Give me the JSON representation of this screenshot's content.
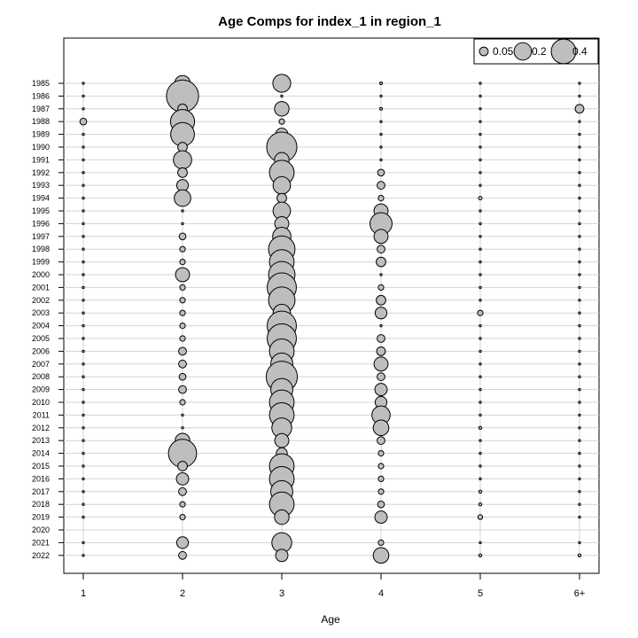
{
  "chart_data": {
    "type": "scatter",
    "title": "Age Comps for index_1 in region_1",
    "xlabel": "Age",
    "ylabel": "",
    "x_categories": [
      "1",
      "2",
      "3",
      "4",
      "5",
      "6+"
    ],
    "y_categories": [
      "1985",
      "1986",
      "1987",
      "1988",
      "1989",
      "1990",
      "1991",
      "1992",
      "1993",
      "1994",
      "1995",
      "1996",
      "1997",
      "1998",
      "1999",
      "2000",
      "2001",
      "2002",
      "2003",
      "2004",
      "2005",
      "2006",
      "2007",
      "2008",
      "2009",
      "2010",
      "2011",
      "2012",
      "2013",
      "2014",
      "2015",
      "2016",
      "2017",
      "2018",
      "2019",
      "2020",
      "2021",
      "2022"
    ],
    "legend": {
      "placement": "top-right",
      "labels": [
        "0.05",
        "0.2",
        "0.4"
      ],
      "values": [
        0.05,
        0.2,
        0.4
      ]
    },
    "grid": true,
    "marker_fill": "#bebebe",
    "marker_stroke": "#000000",
    "values": [
      [
        0.003,
        0.16,
        0.21,
        0.005,
        0.003,
        0.003
      ],
      [
        0.003,
        0.68,
        0.003,
        0.003,
        0.003,
        0.003
      ],
      [
        0.003,
        0.06,
        0.14,
        0.005,
        0.003,
        0.05
      ],
      [
        0.03,
        0.38,
        0.02,
        0.003,
        0.003,
        0.003
      ],
      [
        0.003,
        0.37,
        0.1,
        0.003,
        0.003,
        0.003
      ],
      [
        0.003,
        0.06,
        0.6,
        0.003,
        0.003,
        0.003
      ],
      [
        0.003,
        0.22,
        0.14,
        0.003,
        0.003,
        0.003
      ],
      [
        0.003,
        0.06,
        0.4,
        0.03,
        0.003,
        0.003
      ],
      [
        0.003,
        0.09,
        0.2,
        0.04,
        0.003,
        0.003
      ],
      [
        0.003,
        0.18,
        0.06,
        0.02,
        0.008,
        0.003
      ],
      [
        0.003,
        0.003,
        0.2,
        0.13,
        0.003,
        0.003
      ],
      [
        0.003,
        0.003,
        0.13,
        0.32,
        0.003,
        0.003
      ],
      [
        0.003,
        0.03,
        0.22,
        0.13,
        0.003,
        0.003
      ],
      [
        0.003,
        0.02,
        0.46,
        0.04,
        0.003,
        0.003
      ],
      [
        0.003,
        0.02,
        0.4,
        0.06,
        0.003,
        0.003
      ],
      [
        0.003,
        0.13,
        0.46,
        0.003,
        0.003,
        0.003
      ],
      [
        0.003,
        0.02,
        0.56,
        0.02,
        0.003,
        0.003
      ],
      [
        0.003,
        0.02,
        0.46,
        0.06,
        0.003,
        0.003
      ],
      [
        0.003,
        0.02,
        0.2,
        0.09,
        0.02,
        0.003
      ],
      [
        0.003,
        0.02,
        0.56,
        0.003,
        0.003,
        0.003
      ],
      [
        0.003,
        0.02,
        0.56,
        0.04,
        0.003,
        0.003
      ],
      [
        0.003,
        0.04,
        0.4,
        0.05,
        0.003,
        0.003
      ],
      [
        0.003,
        0.04,
        0.32,
        0.13,
        0.003,
        0.003
      ],
      [
        0.003,
        0.03,
        0.64,
        0.04,
        0.003,
        0.003
      ],
      [
        0.003,
        0.04,
        0.32,
        0.1,
        0.003,
        0.003
      ],
      [
        0.003,
        0.02,
        0.4,
        0.09,
        0.003,
        0.003
      ],
      [
        0.003,
        0.003,
        0.4,
        0.22,
        0.003,
        0.003
      ],
      [
        0.003,
        0.003,
        0.26,
        0.16,
        0.006,
        0.003
      ],
      [
        0.003,
        0.14,
        0.13,
        0.04,
        0.003,
        0.003
      ],
      [
        0.003,
        0.52,
        0.08,
        0.02,
        0.003,
        0.003
      ],
      [
        0.003,
        0.06,
        0.4,
        0.02,
        0.003,
        0.003
      ],
      [
        0.003,
        0.1,
        0.4,
        0.02,
        0.003,
        0.003
      ],
      [
        0.003,
        0.04,
        0.32,
        0.02,
        0.006,
        0.003
      ],
      [
        0.003,
        0.02,
        0.4,
        0.03,
        0.006,
        0.003
      ],
      [
        0.003,
        0.02,
        0.14,
        0.1,
        0.015,
        0.003
      ],
      [
        0,
        0,
        0,
        0,
        0,
        0
      ],
      [
        0.003,
        0.09,
        0.26,
        0.02,
        0.003,
        0.003
      ],
      [
        0.003,
        0.04,
        0.1,
        0.16,
        0.006,
        0.006
      ]
    ]
  }
}
